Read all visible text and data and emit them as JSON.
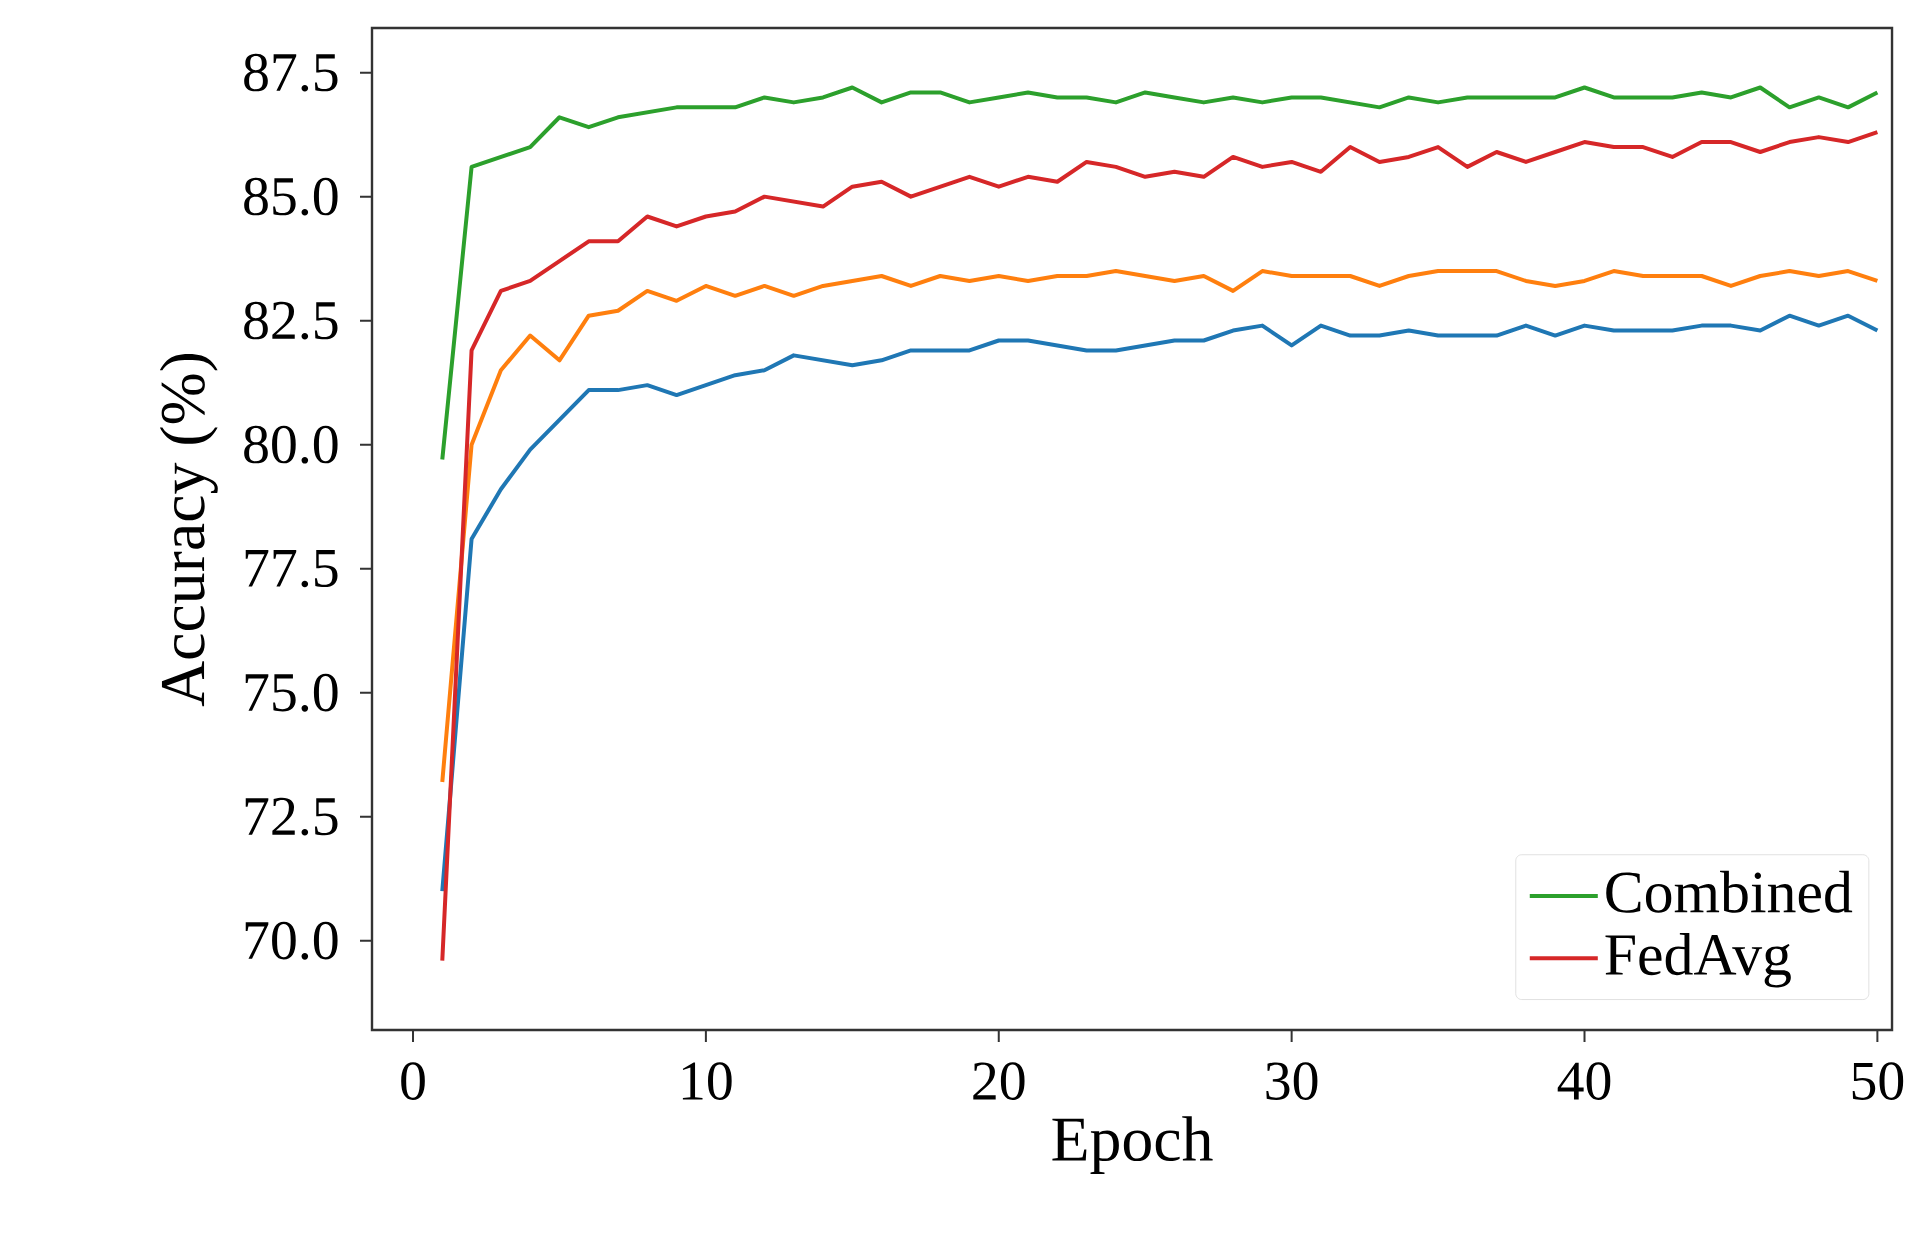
{
  "chart_data": {
    "type": "line",
    "xlabel": "Epoch",
    "ylabel": "Accuracy (%)",
    "x": [
      1,
      2,
      3,
      4,
      5,
      6,
      7,
      8,
      9,
      10,
      11,
      12,
      13,
      14,
      15,
      16,
      17,
      18,
      19,
      20,
      21,
      22,
      23,
      24,
      25,
      26,
      27,
      28,
      29,
      30,
      31,
      32,
      33,
      34,
      35,
      36,
      37,
      38,
      39,
      40,
      41,
      42,
      43,
      44,
      45,
      46,
      47,
      48,
      49,
      50
    ],
    "series": [
      {
        "color": "#1f77b4",
        "values": [
          71.0,
          78.1,
          79.1,
          79.9,
          80.5,
          81.1,
          81.1,
          81.2,
          81.0,
          81.2,
          81.4,
          81.5,
          81.8,
          81.7,
          81.6,
          81.7,
          81.9,
          81.9,
          81.9,
          82.1,
          82.1,
          82.0,
          81.9,
          81.9,
          82.0,
          82.1,
          82.1,
          82.3,
          82.4,
          82.0,
          82.4,
          82.2,
          82.2,
          82.3,
          82.2,
          82.2,
          82.2,
          82.4,
          82.2,
          82.4,
          82.3,
          82.3,
          82.3,
          82.4,
          82.4,
          82.3,
          82.6,
          82.4,
          82.6,
          82.3
        ]
      },
      {
        "color": "#ff7f0e",
        "values": [
          73.2,
          80.0,
          81.5,
          82.2,
          81.7,
          82.6,
          82.7,
          83.1,
          82.9,
          83.2,
          83.0,
          83.2,
          83.0,
          83.2,
          83.3,
          83.4,
          83.2,
          83.4,
          83.3,
          83.4,
          83.3,
          83.4,
          83.4,
          83.5,
          83.4,
          83.3,
          83.4,
          83.1,
          83.5,
          83.4,
          83.4,
          83.4,
          83.2,
          83.4,
          83.5,
          83.5,
          83.5,
          83.3,
          83.2,
          83.3,
          83.5,
          83.4,
          83.4,
          83.4,
          83.2,
          83.4,
          83.5,
          83.4,
          83.5,
          83.3
        ]
      },
      {
        "name": "Combined",
        "color": "#2ca02c",
        "values": [
          79.7,
          85.6,
          85.8,
          86.0,
          86.6,
          86.4,
          86.6,
          86.7,
          86.8,
          86.8,
          86.8,
          87.0,
          86.9,
          87.0,
          87.2,
          86.9,
          87.1,
          87.1,
          86.9,
          87.0,
          87.1,
          87.0,
          87.0,
          86.9,
          87.1,
          87.0,
          86.9,
          87.0,
          86.9,
          87.0,
          87.0,
          86.9,
          86.8,
          87.0,
          86.9,
          87.0,
          87.0,
          87.0,
          87.0,
          87.2,
          87.0,
          87.0,
          87.0,
          87.1,
          87.0,
          87.2,
          86.8,
          87.0,
          86.8,
          87.1
        ]
      },
      {
        "name": "FedAvg",
        "color": "#d62728",
        "values": [
          69.6,
          81.9,
          83.1,
          83.3,
          83.7,
          84.1,
          84.1,
          84.6,
          84.4,
          84.6,
          84.7,
          85.0,
          84.9,
          84.8,
          85.2,
          85.3,
          85.0,
          85.2,
          85.4,
          85.2,
          85.4,
          85.3,
          85.7,
          85.6,
          85.4,
          85.5,
          85.4,
          85.8,
          85.6,
          85.7,
          85.5,
          86.0,
          85.7,
          85.8,
          86.0,
          85.6,
          85.9,
          85.7,
          85.9,
          86.1,
          86.0,
          86.0,
          85.8,
          86.1,
          86.1,
          85.9,
          86.1,
          86.2,
          86.1,
          86.3
        ]
      }
    ],
    "xlim": [
      -1.4,
      50.5
    ],
    "ylim": [
      68.2,
      88.4
    ],
    "xticks": [
      0,
      10,
      20,
      30,
      40,
      50
    ],
    "yticks": [
      {
        "value": 70,
        "label": "70.0"
      },
      {
        "value": 72.5,
        "label": "72.5"
      },
      {
        "value": 75,
        "label": "75.0"
      },
      {
        "value": 77.5,
        "label": "77.5"
      },
      {
        "value": 80,
        "label": "80.0"
      },
      {
        "value": 82.5,
        "label": "82.5"
      },
      {
        "value": 85,
        "label": "85.0"
      },
      {
        "value": 87.5,
        "label": "87.5"
      }
    ],
    "legend": "bottom right",
    "grid": false,
    "line_style": "solid"
  }
}
